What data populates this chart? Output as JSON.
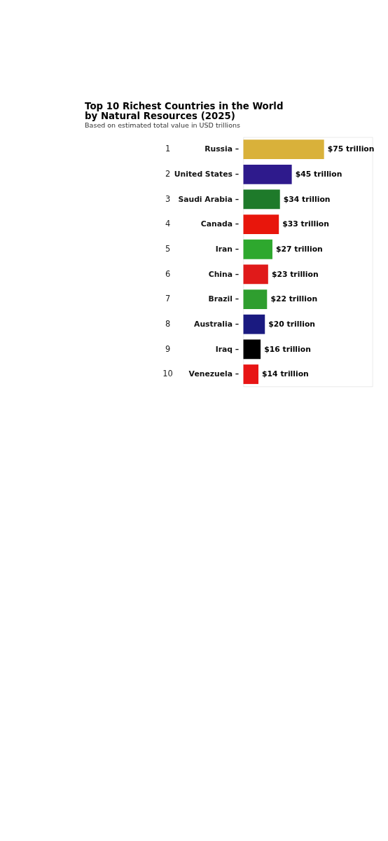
{
  "chart_data": {
    "type": "bar",
    "orientation": "horizontal",
    "title": "Top 10 Richest Countries in the World by Natural Resources (2025)",
    "subtitle": "Based on estimated total value in USD trillions",
    "categories": [
      "Russia –",
      "United States –",
      "Saudi Arabia –",
      "Canada –",
      "Iran –",
      "China –",
      "Brazil –",
      "Australia –",
      "Iraq –",
      "Venezuela –"
    ],
    "values": [
      75,
      45,
      34,
      33,
      27,
      23,
      22,
      20,
      16,
      14
    ],
    "colors": [
      "#d9b13a",
      "#2e1a8c",
      "#1e7a2a",
      "#e8160c",
      "#2ea82e",
      "#e01a1a",
      "#2f9e2f",
      "#1a1a80",
      "#000000",
      "#e81515"
    ],
    "value_labels": [
      "$75 trillion",
      "$45 trillion",
      "$34 trillion",
      "$33 trillion",
      "$27 trillion",
      "$23 trillion",
      "$22 trillion",
      "$20 trillion",
      "$16 trillion",
      "$14 trillion"
    ],
    "annotations": [
      "1",
      "2",
      "3",
      "4",
      "5",
      "6",
      "7",
      "8",
      "9",
      "10"
    ]
  }
}
